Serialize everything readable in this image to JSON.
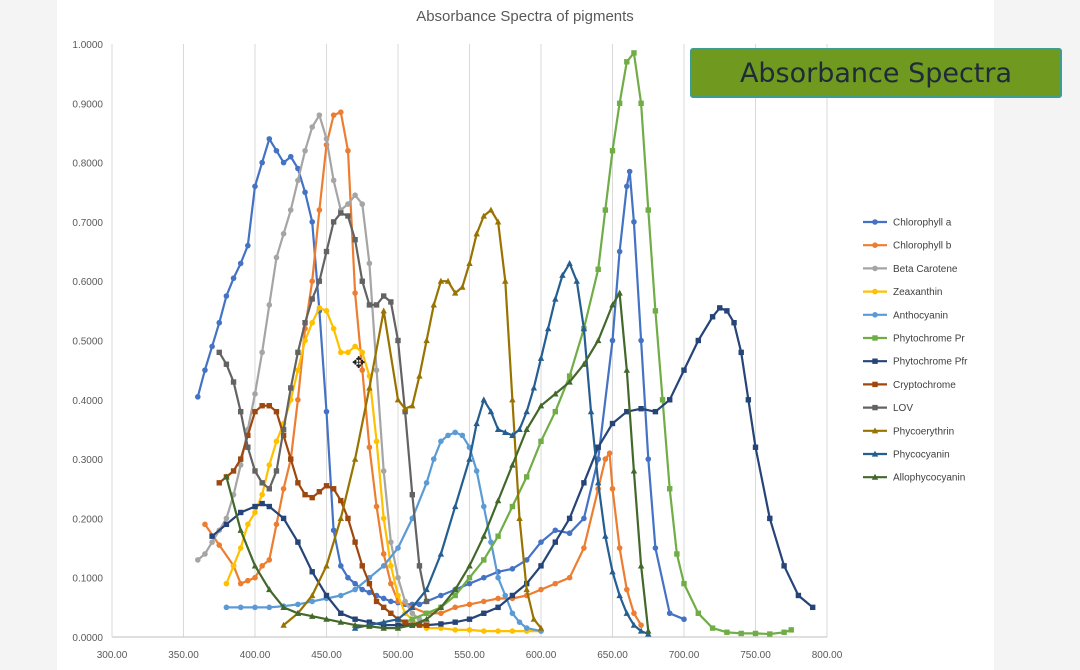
{
  "banner": {
    "text": "Absorbance Spectra"
  },
  "cursor": {
    "icon": "move-cursor-icon"
  },
  "chart_data": {
    "type": "line",
    "title": "Absorbance Spectra of pigments",
    "xlabel": "",
    "ylabel": "",
    "xlim": [
      300,
      800
    ],
    "ylim": [
      0,
      1
    ],
    "x_ticks": [
      300,
      350,
      400,
      450,
      500,
      550,
      600,
      650,
      700,
      750,
      800
    ],
    "y_ticks": [
      0,
      0.1,
      0.2,
      0.3,
      0.4,
      0.5,
      0.6,
      0.7,
      0.8,
      0.9,
      1.0
    ],
    "x_tick_labels": [
      "300.00",
      "350.00",
      "400.00",
      "450.00",
      "500.00",
      "550.00",
      "600.00",
      "650.00",
      "700.00",
      "750.00",
      "800.00"
    ],
    "y_tick_labels": [
      "0.0000",
      "0.1000",
      "0.2000",
      "0.3000",
      "0.4000",
      "0.5000",
      "0.6000",
      "0.7000",
      "0.8000",
      "0.9000",
      "1.0000"
    ],
    "grid": "vertical",
    "legend_position": "right",
    "series": [
      {
        "name": "Chlorophyll a",
        "color": "#4472c4",
        "marker": "circle",
        "x": [
          360,
          365,
          370,
          375,
          380,
          385,
          390,
          395,
          400,
          405,
          410,
          415,
          420,
          425,
          430,
          435,
          440,
          445,
          450,
          455,
          460,
          465,
          470,
          475,
          480,
          485,
          490,
          495,
          500,
          505,
          510,
          515,
          520,
          530,
          540,
          550,
          560,
          570,
          580,
          590,
          600,
          610,
          620,
          630,
          640,
          650,
          655,
          660,
          662,
          665,
          670,
          675,
          680,
          690,
          700
        ],
        "y": [
          0.405,
          0.45,
          0.49,
          0.53,
          0.575,
          0.605,
          0.63,
          0.66,
          0.76,
          0.8,
          0.84,
          0.82,
          0.8,
          0.81,
          0.79,
          0.75,
          0.7,
          0.55,
          0.38,
          0.18,
          0.12,
          0.1,
          0.09,
          0.08,
          0.075,
          0.07,
          0.065,
          0.06,
          0.058,
          0.055,
          0.055,
          0.055,
          0.06,
          0.07,
          0.08,
          0.09,
          0.1,
          0.11,
          0.115,
          0.13,
          0.16,
          0.18,
          0.175,
          0.2,
          0.3,
          0.5,
          0.65,
          0.76,
          0.785,
          0.7,
          0.5,
          0.3,
          0.15,
          0.04,
          0.03
        ]
      },
      {
        "name": "Chlorophyll b",
        "color": "#ed7d31",
        "marker": "circle",
        "x": [
          365,
          375,
          385,
          390,
          395,
          400,
          405,
          410,
          415,
          420,
          425,
          430,
          435,
          440,
          445,
          450,
          455,
          460,
          465,
          470,
          475,
          480,
          485,
          490,
          495,
          500,
          510,
          520,
          530,
          540,
          550,
          560,
          570,
          580,
          590,
          600,
          610,
          620,
          630,
          640,
          645,
          648,
          650,
          655,
          660,
          665,
          670
        ],
        "y": [
          0.19,
          0.155,
          0.12,
          0.09,
          0.095,
          0.1,
          0.12,
          0.13,
          0.19,
          0.25,
          0.3,
          0.4,
          0.52,
          0.6,
          0.72,
          0.83,
          0.88,
          0.885,
          0.82,
          0.58,
          0.45,
          0.32,
          0.22,
          0.14,
          0.09,
          0.06,
          0.05,
          0.04,
          0.04,
          0.05,
          0.055,
          0.06,
          0.065,
          0.065,
          0.07,
          0.08,
          0.09,
          0.1,
          0.15,
          0.25,
          0.3,
          0.31,
          0.25,
          0.15,
          0.08,
          0.04,
          0.02
        ]
      },
      {
        "name": "Beta Carotene",
        "color": "#a5a5a5",
        "marker": "circle",
        "x": [
          360,
          365,
          370,
          375,
          380,
          385,
          390,
          395,
          400,
          405,
          410,
          415,
          420,
          425,
          430,
          435,
          440,
          445,
          450,
          455,
          460,
          465,
          470,
          475,
          480,
          485,
          490,
          495,
          500,
          505,
          510,
          515,
          520
        ],
        "y": [
          0.13,
          0.14,
          0.16,
          0.18,
          0.2,
          0.24,
          0.29,
          0.35,
          0.41,
          0.48,
          0.56,
          0.64,
          0.68,
          0.72,
          0.77,
          0.82,
          0.86,
          0.88,
          0.84,
          0.77,
          0.72,
          0.73,
          0.745,
          0.73,
          0.63,
          0.45,
          0.28,
          0.16,
          0.1,
          0.06,
          0.04,
          0.03,
          0.02
        ]
      },
      {
        "name": "Zeaxanthin",
        "color": "#ffc000",
        "marker": "circle",
        "x": [
          380,
          385,
          390,
          395,
          400,
          405,
          410,
          415,
          420,
          425,
          430,
          435,
          440,
          445,
          450,
          455,
          460,
          465,
          470,
          475,
          480,
          485,
          490,
          495,
          500,
          505,
          510,
          515,
          520,
          530,
          540,
          550,
          560,
          570,
          580,
          590,
          600
        ],
        "y": [
          0.09,
          0.12,
          0.15,
          0.19,
          0.21,
          0.24,
          0.29,
          0.33,
          0.36,
          0.4,
          0.45,
          0.5,
          0.53,
          0.555,
          0.55,
          0.52,
          0.48,
          0.48,
          0.49,
          0.48,
          0.44,
          0.33,
          0.2,
          0.12,
          0.07,
          0.04,
          0.03,
          0.02,
          0.015,
          0.015,
          0.012,
          0.012,
          0.01,
          0.01,
          0.01,
          0.01,
          0.01
        ]
      },
      {
        "name": "Anthocyanin",
        "color": "#5b9bd5",
        "marker": "circle",
        "x": [
          380,
          390,
          400,
          410,
          420,
          430,
          440,
          450,
          460,
          470,
          480,
          490,
          500,
          510,
          520,
          525,
          530,
          535,
          540,
          545,
          550,
          555,
          560,
          565,
          570,
          575,
          580,
          585,
          590,
          600
        ],
        "y": [
          0.05,
          0.05,
          0.05,
          0.05,
          0.052,
          0.055,
          0.06,
          0.065,
          0.07,
          0.08,
          0.1,
          0.12,
          0.15,
          0.2,
          0.26,
          0.3,
          0.33,
          0.34,
          0.345,
          0.34,
          0.32,
          0.28,
          0.22,
          0.16,
          0.1,
          0.07,
          0.04,
          0.025,
          0.015,
          0.01
        ]
      },
      {
        "name": "Phytochrome Pr",
        "color": "#70ad47",
        "marker": "square",
        "x": [
          500,
          510,
          520,
          530,
          540,
          550,
          560,
          570,
          580,
          590,
          600,
          610,
          620,
          630,
          640,
          645,
          650,
          655,
          660,
          665,
          670,
          675,
          680,
          685,
          690,
          695,
          700,
          710,
          720,
          730,
          740,
          750,
          760,
          770,
          775
        ],
        "y": [
          0.02,
          0.03,
          0.04,
          0.05,
          0.07,
          0.1,
          0.13,
          0.17,
          0.22,
          0.27,
          0.33,
          0.38,
          0.44,
          0.52,
          0.62,
          0.72,
          0.82,
          0.9,
          0.97,
          0.985,
          0.9,
          0.72,
          0.55,
          0.4,
          0.25,
          0.14,
          0.09,
          0.04,
          0.015,
          0.008,
          0.006,
          0.006,
          0.005,
          0.008,
          0.012
        ]
      },
      {
        "name": "Phytochrome Pfr",
        "color": "#264478",
        "marker": "square",
        "x": [
          370,
          380,
          390,
          400,
          405,
          410,
          420,
          430,
          440,
          450,
          460,
          470,
          480,
          490,
          500,
          510,
          520,
          530,
          540,
          550,
          560,
          570,
          580,
          590,
          600,
          610,
          620,
          630,
          640,
          650,
          660,
          670,
          680,
          690,
          700,
          710,
          720,
          725,
          730,
          735,
          740,
          745,
          750,
          760,
          770,
          780,
          790
        ],
        "y": [
          0.17,
          0.19,
          0.21,
          0.22,
          0.225,
          0.22,
          0.2,
          0.16,
          0.11,
          0.07,
          0.04,
          0.03,
          0.025,
          0.02,
          0.02,
          0.02,
          0.02,
          0.022,
          0.025,
          0.03,
          0.04,
          0.05,
          0.07,
          0.09,
          0.12,
          0.16,
          0.2,
          0.26,
          0.32,
          0.36,
          0.38,
          0.385,
          0.38,
          0.4,
          0.45,
          0.5,
          0.54,
          0.555,
          0.55,
          0.53,
          0.48,
          0.4,
          0.32,
          0.2,
          0.12,
          0.07,
          0.05
        ]
      },
      {
        "name": "Cryptochrome",
        "color": "#9e480e",
        "marker": "square",
        "x": [
          375,
          380,
          385,
          390,
          395,
          400,
          405,
          410,
          415,
          420,
          425,
          430,
          435,
          440,
          445,
          450,
          455,
          460,
          465,
          470,
          475,
          480,
          485,
          490,
          495,
          500,
          505,
          510,
          515,
          520
        ],
        "y": [
          0.26,
          0.27,
          0.28,
          0.3,
          0.34,
          0.38,
          0.39,
          0.39,
          0.38,
          0.34,
          0.3,
          0.26,
          0.24,
          0.235,
          0.245,
          0.255,
          0.25,
          0.23,
          0.2,
          0.16,
          0.12,
          0.09,
          0.06,
          0.05,
          0.04,
          0.03,
          0.025,
          0.02,
          0.02,
          0.02
        ]
      },
      {
        "name": "LOV",
        "color": "#636363",
        "marker": "square",
        "x": [
          375,
          380,
          385,
          390,
          395,
          400,
          405,
          410,
          415,
          420,
          425,
          430,
          435,
          440,
          445,
          450,
          455,
          460,
          465,
          470,
          475,
          480,
          485,
          490,
          495,
          500,
          505,
          510,
          515,
          520
        ],
        "y": [
          0.48,
          0.46,
          0.43,
          0.38,
          0.32,
          0.28,
          0.26,
          0.25,
          0.28,
          0.35,
          0.42,
          0.48,
          0.53,
          0.57,
          0.6,
          0.65,
          0.7,
          0.715,
          0.71,
          0.67,
          0.6,
          0.56,
          0.56,
          0.575,
          0.565,
          0.5,
          0.38,
          0.24,
          0.12,
          0.06
        ]
      },
      {
        "name": "Phycoerythrin",
        "color": "#997300",
        "marker": "triangle",
        "x": [
          420,
          430,
          440,
          450,
          460,
          470,
          480,
          490,
          500,
          505,
          510,
          515,
          520,
          525,
          530,
          535,
          540,
          545,
          550,
          555,
          560,
          565,
          570,
          575,
          580,
          585,
          590,
          595,
          600
        ],
        "y": [
          0.02,
          0.04,
          0.07,
          0.12,
          0.2,
          0.3,
          0.42,
          0.55,
          0.4,
          0.385,
          0.39,
          0.44,
          0.5,
          0.56,
          0.6,
          0.6,
          0.58,
          0.59,
          0.63,
          0.68,
          0.71,
          0.72,
          0.7,
          0.6,
          0.4,
          0.2,
          0.08,
          0.03,
          0.015
        ]
      },
      {
        "name": "Phycocyanin",
        "color": "#255e91",
        "marker": "triangle",
        "x": [
          470,
          480,
          490,
          500,
          510,
          520,
          530,
          540,
          550,
          555,
          560,
          565,
          570,
          575,
          580,
          585,
          590,
          595,
          600,
          605,
          610,
          615,
          620,
          625,
          630,
          635,
          640,
          645,
          650,
          655,
          660,
          665,
          670,
          675
        ],
        "y": [
          0.015,
          0.02,
          0.025,
          0.03,
          0.05,
          0.08,
          0.14,
          0.22,
          0.3,
          0.36,
          0.4,
          0.38,
          0.35,
          0.345,
          0.34,
          0.35,
          0.38,
          0.42,
          0.47,
          0.52,
          0.57,
          0.61,
          0.63,
          0.6,
          0.52,
          0.38,
          0.26,
          0.17,
          0.11,
          0.07,
          0.04,
          0.02,
          0.01,
          0.005
        ]
      },
      {
        "name": "Allophycocyanin",
        "color": "#43682b",
        "marker": "triangle",
        "x": [
          380,
          390,
          400,
          410,
          420,
          430,
          440,
          450,
          460,
          470,
          480,
          490,
          500,
          510,
          520,
          530,
          540,
          550,
          560,
          570,
          580,
          590,
          600,
          610,
          620,
          630,
          640,
          650,
          655,
          660,
          665,
          670,
          675
        ],
        "y": [
          0.27,
          0.18,
          0.12,
          0.08,
          0.05,
          0.04,
          0.035,
          0.03,
          0.025,
          0.02,
          0.018,
          0.015,
          0.015,
          0.02,
          0.03,
          0.05,
          0.08,
          0.12,
          0.17,
          0.23,
          0.29,
          0.35,
          0.39,
          0.41,
          0.43,
          0.46,
          0.5,
          0.56,
          0.58,
          0.45,
          0.28,
          0.12,
          0.01
        ]
      }
    ]
  }
}
